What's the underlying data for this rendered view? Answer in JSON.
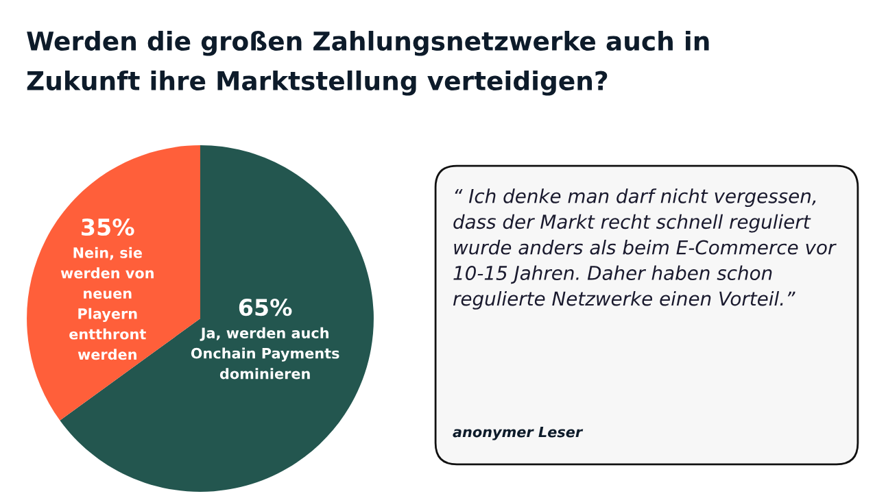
{
  "chart_data": [
    {
      "type": "pie",
      "title": "Werden die großen Zahlungsnetzwerke auch in Zukunft ihre Marktstellung verteidigen?",
      "categories": [
        "Ja, werden auch Onchain Payments dominieren",
        "Nein, sie werden von neuen Playern entthront werden"
      ],
      "values": [
        65,
        35
      ],
      "colors": [
        "#23564f",
        "#ff5f3a"
      ],
      "value_labels": [
        "65%",
        "35%"
      ]
    },
    {
      "type": "other",
      "annotations": [
        "“ Ich denke man darf nicht vergessen, dass der Markt recht schnell reguliert wurde anders als beim E-Commerce vor 10-15 Jahren. Daher haben schon regulierte Netzwerke einen Vorteil.”",
        "anonymer Leser"
      ]
    }
  ]
}
